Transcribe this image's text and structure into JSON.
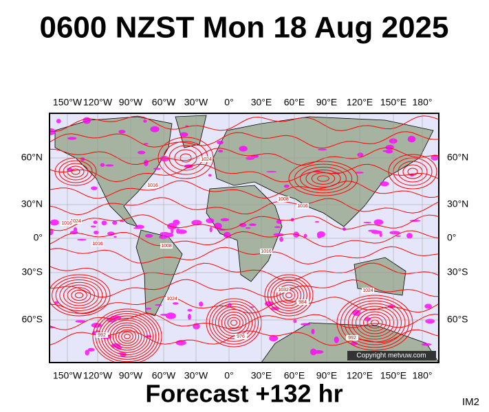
{
  "title": "0600 NZST Mon 18 Aug 2025",
  "subtitle": "Forecast +132 hr",
  "corner_label": "IM2",
  "copyright": "Copyright metvuw.com",
  "map": {
    "longitude_labels": [
      "150°W",
      "120°W",
      "90°W",
      "60°W",
      "30°W",
      "0°",
      "30°E",
      "60°E",
      "90°E",
      "120°E",
      "150°E",
      "180°"
    ],
    "latitude_labels": [
      "60°N",
      "30°N",
      "0°",
      "30°S",
      "60°S"
    ],
    "isobar_labels": [
      "1024",
      "1016",
      "1016",
      "1008",
      "1016",
      "1024",
      "1008",
      "1016",
      "1024",
      "1016",
      "992",
      "984",
      "976",
      "1032",
      "1024",
      "992"
    ]
  }
}
